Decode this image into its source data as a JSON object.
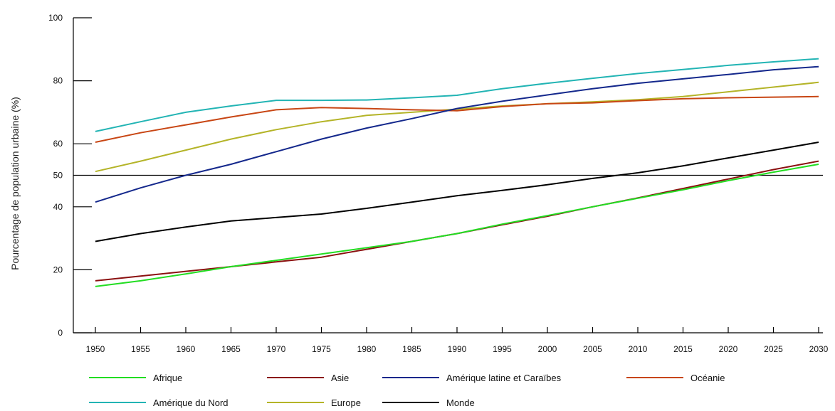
{
  "chart_data": {
    "type": "line",
    "ylabel": "Pourcentage de population urbaine (%)",
    "xlabel": "",
    "ylim": [
      0,
      100
    ],
    "xlim": [
      1950,
      2030
    ],
    "y_ticks": [
      0,
      20,
      40,
      50,
      60,
      80,
      100
    ],
    "x_ticks": [
      1950,
      1955,
      1960,
      1965,
      1970,
      1975,
      1980,
      1985,
      1990,
      1995,
      2000,
      2005,
      2010,
      2015,
      2020,
      2025,
      2030
    ],
    "reference_line": 50,
    "legend_position": "bottom",
    "series": [
      {
        "name": "Afrique",
        "color": "#22dd22",
        "x": [
          1950,
          1955,
          1960,
          1965,
          1970,
          1975,
          1980,
          1985,
          1990,
          1995,
          2000,
          2005,
          2010,
          2015,
          2020,
          2025,
          2030
        ],
        "y": [
          14.7,
          16.5,
          18.7,
          21.0,
          23.0,
          25.0,
          27.0,
          29.0,
          31.5,
          34.5,
          37.2,
          40.0,
          42.7,
          45.4,
          48.3,
          51.0,
          53.5
        ]
      },
      {
        "name": "Asie",
        "color": "#8b1010",
        "x": [
          1950,
          1955,
          1960,
          1965,
          1970,
          1975,
          1980,
          1985,
          1990,
          1995,
          2000,
          2005,
          2010,
          2015,
          2020,
          2025,
          2030
        ],
        "y": [
          16.5,
          18.0,
          19.5,
          21.0,
          22.5,
          24.0,
          26.5,
          29.0,
          31.5,
          34.3,
          37.0,
          40.0,
          42.8,
          45.8,
          48.8,
          51.8,
          54.5
        ]
      },
      {
        "name": "Amérique latine et Caraïbes",
        "color": "#14288c",
        "x": [
          1950,
          1955,
          1960,
          1965,
          1970,
          1975,
          1980,
          1985,
          1990,
          1995,
          2000,
          2005,
          2010,
          2015,
          2020,
          2025,
          2030
        ],
        "y": [
          41.5,
          46.0,
          50.0,
          53.5,
          57.5,
          61.5,
          65.0,
          68.0,
          71.2,
          73.5,
          75.5,
          77.5,
          79.2,
          80.6,
          82.0,
          83.5,
          84.5
        ]
      },
      {
        "name": "Océanie",
        "color": "#c84614",
        "x": [
          1950,
          1955,
          1960,
          1965,
          1970,
          1975,
          1980,
          1985,
          1990,
          1995,
          2000,
          2005,
          2010,
          2015,
          2020,
          2025,
          2030
        ],
        "y": [
          60.5,
          63.5,
          66.0,
          68.5,
          70.8,
          71.5,
          71.2,
          70.8,
          70.5,
          71.8,
          72.7,
          73.0,
          73.7,
          74.3,
          74.6,
          74.8,
          75.0
        ]
      },
      {
        "name": "Amérique du Nord",
        "color": "#22b4b4",
        "x": [
          1950,
          1955,
          1960,
          1965,
          1970,
          1975,
          1980,
          1985,
          1990,
          1995,
          2000,
          2005,
          2010,
          2015,
          2020,
          2025,
          2030
        ],
        "y": [
          63.9,
          67.0,
          70.0,
          72.0,
          73.8,
          73.8,
          73.9,
          74.6,
          75.4,
          77.5,
          79.2,
          80.8,
          82.3,
          83.6,
          84.9,
          86.0,
          87.0
        ]
      },
      {
        "name": "Europe",
        "color": "#b4b428",
        "x": [
          1950,
          1955,
          1960,
          1965,
          1970,
          1975,
          1980,
          1985,
          1990,
          1995,
          2000,
          2005,
          2010,
          2015,
          2020,
          2025,
          2030
        ],
        "y": [
          51.2,
          54.5,
          58.0,
          61.5,
          64.5,
          67.0,
          69.0,
          70.0,
          71.0,
          72.0,
          72.7,
          73.3,
          74.0,
          75.0,
          76.5,
          78.0,
          79.5
        ]
      },
      {
        "name": "Monde",
        "color": "#000000",
        "x": [
          1950,
          1955,
          1960,
          1965,
          1970,
          1975,
          1980,
          1985,
          1990,
          1995,
          2000,
          2005,
          2010,
          2015,
          2020,
          2025,
          2030
        ],
        "y": [
          29.0,
          31.5,
          33.6,
          35.5,
          36.6,
          37.7,
          39.5,
          41.5,
          43.5,
          45.2,
          47.0,
          49.0,
          50.8,
          53.0,
          55.5,
          58.0,
          60.5
        ]
      }
    ],
    "legend": [
      "Afrique",
      "Asie",
      "Amérique latine et Caraïbes",
      "Océanie",
      "Amérique du Nord",
      "Europe",
      "Monde"
    ],
    "grid": false
  }
}
